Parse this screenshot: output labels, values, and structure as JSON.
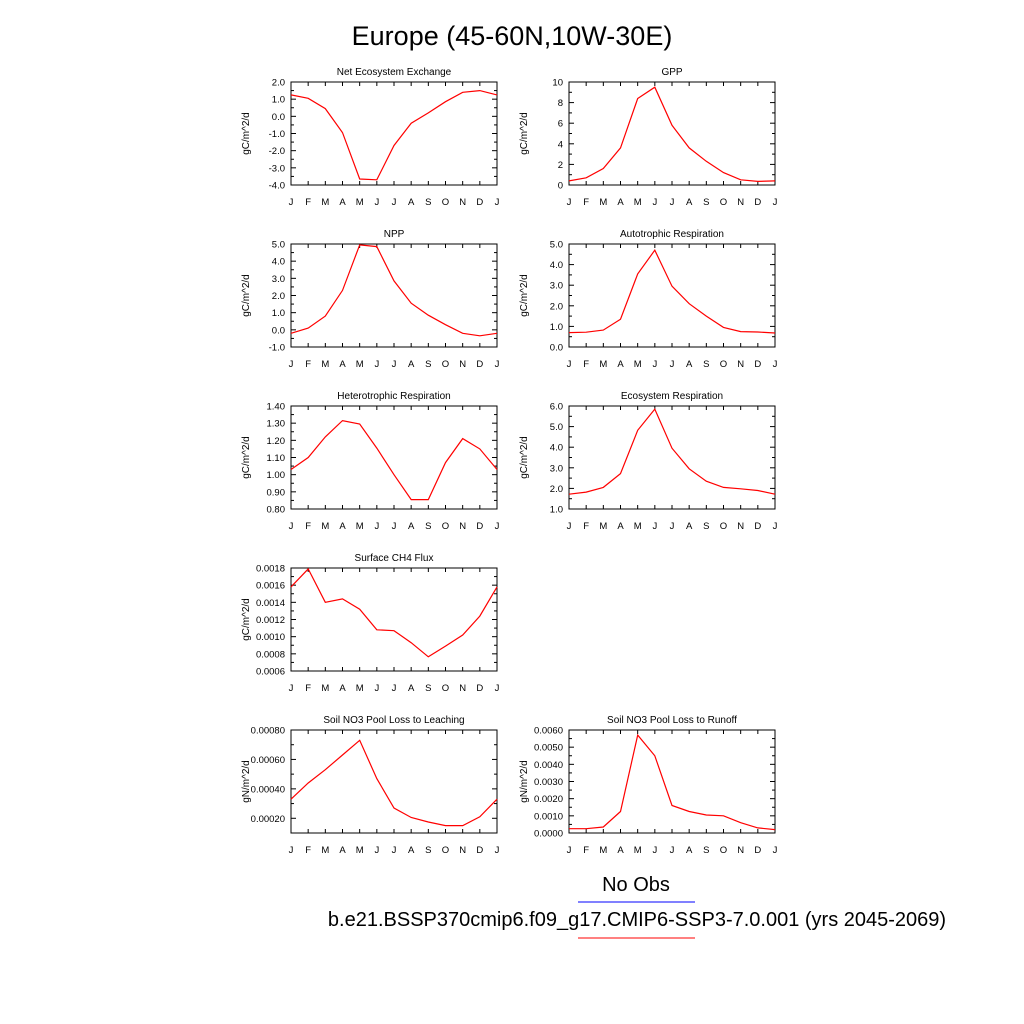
{
  "title": "Europe (45-60N,10W-30E)",
  "legend": {
    "obs_label": "No Obs",
    "case_label": "b.e21.BSSP370cmip6.f09_g17.CMIP6-SSP3-7.0.001 (yrs 2045-2069)",
    "obs_color": "#0000ff",
    "case_color": "#ff0000"
  },
  "colors": {
    "series": "#ff0000",
    "axis": "#000000"
  },
  "chart_data": [
    {
      "type": "line",
      "title": "Net Ecosystem Exchange",
      "ylabel": "gC/m^2/d",
      "x": [
        "J",
        "F",
        "M",
        "A",
        "M",
        "J",
        "J",
        "A",
        "S",
        "O",
        "N",
        "D",
        "J"
      ],
      "ylim": [
        -4.0,
        2.0
      ],
      "yticks": [
        -4.0,
        -3.0,
        -2.0,
        -1.0,
        0.0,
        1.0,
        2.0
      ],
      "ytick_labels": [
        "-4.0",
        "-3.0",
        "-2.0",
        "-1.0",
        "0.0",
        "1.0",
        "2.0"
      ],
      "series": [
        {
          "values": [
            1.25,
            1.05,
            0.45,
            -0.95,
            -3.65,
            -3.7,
            -1.7,
            -0.4,
            0.2,
            0.85,
            1.4,
            1.5,
            1.25
          ]
        }
      ]
    },
    {
      "type": "line",
      "title": "GPP",
      "ylabel": "gC/m^2/d",
      "x": [
        "J",
        "F",
        "M",
        "A",
        "M",
        "J",
        "J",
        "A",
        "S",
        "O",
        "N",
        "D",
        "J"
      ],
      "ylim": [
        0,
        10
      ],
      "yticks": [
        0,
        2,
        4,
        6,
        8,
        10
      ],
      "ytick_labels": [
        "0",
        "2",
        "4",
        "6",
        "8",
        "10"
      ],
      "series": [
        {
          "values": [
            0.4,
            0.7,
            1.6,
            3.6,
            8.4,
            9.5,
            5.8,
            3.6,
            2.3,
            1.2,
            0.5,
            0.35,
            0.4
          ]
        }
      ]
    },
    {
      "type": "line",
      "title": "NPP",
      "ylabel": "gC/m^2/d",
      "x": [
        "J",
        "F",
        "M",
        "A",
        "M",
        "J",
        "J",
        "A",
        "S",
        "O",
        "N",
        "D",
        "J"
      ],
      "ylim": [
        -1.0,
        5.0
      ],
      "yticks": [
        -1.0,
        0.0,
        1.0,
        2.0,
        3.0,
        4.0,
        5.0
      ],
      "ytick_labels": [
        "-1.0",
        "0.0",
        "1.0",
        "2.0",
        "3.0",
        "4.0",
        "5.0"
      ],
      "series": [
        {
          "values": [
            -0.2,
            0.1,
            0.8,
            2.3,
            4.95,
            4.85,
            2.85,
            1.55,
            0.85,
            0.3,
            -0.2,
            -0.35,
            -0.2
          ]
        }
      ]
    },
    {
      "type": "line",
      "title": "Autotrophic Respiration",
      "ylabel": "gC/m^2/d",
      "x": [
        "J",
        "F",
        "M",
        "A",
        "M",
        "J",
        "J",
        "A",
        "S",
        "O",
        "N",
        "D",
        "J"
      ],
      "ylim": [
        0.0,
        5.0
      ],
      "yticks": [
        0.0,
        1.0,
        2.0,
        3.0,
        4.0,
        5.0
      ],
      "ytick_labels": [
        "0.0",
        "1.0",
        "2.0",
        "3.0",
        "4.0",
        "5.0"
      ],
      "series": [
        {
          "values": [
            0.7,
            0.72,
            0.82,
            1.35,
            3.55,
            4.7,
            2.95,
            2.1,
            1.5,
            0.95,
            0.75,
            0.73,
            0.68
          ]
        }
      ]
    },
    {
      "type": "line",
      "title": "Heterotrophic Respiration",
      "ylabel": "gC/m^2/d",
      "x": [
        "J",
        "F",
        "M",
        "A",
        "M",
        "J",
        "J",
        "A",
        "S",
        "O",
        "N",
        "D",
        "J"
      ],
      "ylim": [
        0.8,
        1.4
      ],
      "yticks": [
        0.8,
        0.9,
        1.0,
        1.1,
        1.2,
        1.3,
        1.4
      ],
      "ytick_labels": [
        "0.80",
        "0.90",
        "1.00",
        "1.10",
        "1.20",
        "1.30",
        "1.40"
      ],
      "series": [
        {
          "values": [
            1.03,
            1.1,
            1.22,
            1.315,
            1.295,
            1.155,
            1.0,
            0.855,
            0.855,
            1.07,
            1.21,
            1.15,
            1.03
          ]
        }
      ]
    },
    {
      "type": "line",
      "title": "Ecosystem Respiration",
      "ylabel": "gC/m^2/d",
      "x": [
        "J",
        "F",
        "M",
        "A",
        "M",
        "J",
        "J",
        "A",
        "S",
        "O",
        "N",
        "D",
        "J"
      ],
      "ylim": [
        1.0,
        6.0
      ],
      "yticks": [
        1.0,
        2.0,
        3.0,
        4.0,
        5.0,
        6.0
      ],
      "ytick_labels": [
        "1.0",
        "2.0",
        "3.0",
        "4.0",
        "5.0",
        "6.0"
      ],
      "series": [
        {
          "values": [
            1.72,
            1.82,
            2.05,
            2.72,
            4.82,
            5.85,
            3.95,
            2.95,
            2.35,
            2.05,
            1.98,
            1.9,
            1.72
          ]
        }
      ]
    },
    {
      "type": "line",
      "title": "Surface CH4 Flux",
      "ylabel": "gC/m^2/d",
      "x": [
        "J",
        "F",
        "M",
        "A",
        "M",
        "J",
        "J",
        "A",
        "S",
        "O",
        "N",
        "D",
        "J"
      ],
      "ylim": [
        0.0006,
        0.0018
      ],
      "yticks": [
        0.0006,
        0.0008,
        0.001,
        0.0012,
        0.0014,
        0.0016,
        0.0018
      ],
      "ytick_labels": [
        "0.0006",
        "0.0008",
        "0.0010",
        "0.0012",
        "0.0014",
        "0.0016",
        "0.0018"
      ],
      "series": [
        {
          "values": [
            0.00158,
            0.00179,
            0.0014,
            0.00144,
            0.00132,
            0.00108,
            0.00107,
            0.00093,
            0.000765,
            0.00089,
            0.00102,
            0.00124,
            0.00158
          ]
        }
      ]
    },
    {
      "type": "line",
      "title": "Soil NO3 Pool Loss to Leaching",
      "ylabel": "gN/m^2/d",
      "x": [
        "J",
        "F",
        "M",
        "A",
        "M",
        "J",
        "J",
        "A",
        "S",
        "O",
        "N",
        "D",
        "J"
      ],
      "ylim": [
        0.0001,
        0.0008
      ],
      "yticks": [
        0.0002,
        0.0004,
        0.0006,
        0.0008
      ],
      "ytick_labels": [
        "0.00020",
        "0.00040",
        "0.00060",
        "0.00080"
      ],
      "series": [
        {
          "values": [
            0.00033,
            0.00044,
            0.00053,
            0.00063,
            0.00073,
            0.00047,
            0.00027,
            0.000205,
            0.000175,
            0.00015,
            0.00015,
            0.00021,
            0.00033
          ]
        }
      ]
    },
    {
      "type": "line",
      "title": "Soil NO3 Pool Loss to Runoff",
      "ylabel": "gN/m^2/d",
      "x": [
        "J",
        "F",
        "M",
        "A",
        "M",
        "J",
        "J",
        "A",
        "S",
        "O",
        "N",
        "D",
        "J"
      ],
      "ylim": [
        0.0,
        0.006
      ],
      "yticks": [
        0.0,
        0.001,
        0.002,
        0.003,
        0.004,
        0.005,
        0.006
      ],
      "ytick_labels": [
        "0.0000",
        "0.0010",
        "0.0020",
        "0.0030",
        "0.0040",
        "0.0050",
        "0.0060"
      ],
      "series": [
        {
          "values": [
            0.00025,
            0.00025,
            0.00035,
            0.00125,
            0.0057,
            0.0045,
            0.0016,
            0.00125,
            0.00105,
            0.001,
            0.0006,
            0.0003,
            0.0002
          ]
        }
      ]
    }
  ]
}
